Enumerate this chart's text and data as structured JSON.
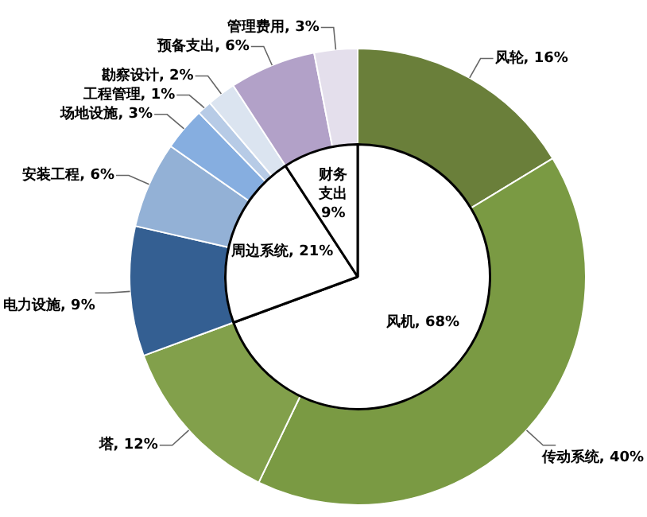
{
  "chart_data": [
    {
      "type": "donut",
      "categories": [
        "风轮",
        "传动系统",
        "塔",
        "电力设施",
        "安装工程",
        "场地设施",
        "工程管理",
        "勘察设计",
        "预备支出",
        "管理费用"
      ],
      "values": [
        16,
        40,
        12,
        9,
        6,
        3,
        1,
        2,
        6,
        3
      ],
      "value_labels": [
        "16%",
        "40%",
        "12%",
        "9%",
        "6%",
        "3%",
        "1%",
        "2%",
        "6%",
        "3%"
      ],
      "colors": [
        "#6a7f3a",
        "#7a9a43",
        "#82a04b",
        "#345f92",
        "#93b1d6",
        "#86aee0",
        "#b7cbe6",
        "#dbe4f0",
        "#b2a1c8",
        "#e4dfec"
      ],
      "legend": false
    },
    {
      "type": "pie",
      "categories": [
        "风机",
        "周边系统",
        "财务支出"
      ],
      "values": [
        68,
        21,
        9
      ],
      "value_labels": [
        "68%",
        "21%",
        "9%"
      ],
      "colors": [
        "#ffffff",
        "#ffffff",
        "#ffffff"
      ],
      "legend": false
    }
  ]
}
